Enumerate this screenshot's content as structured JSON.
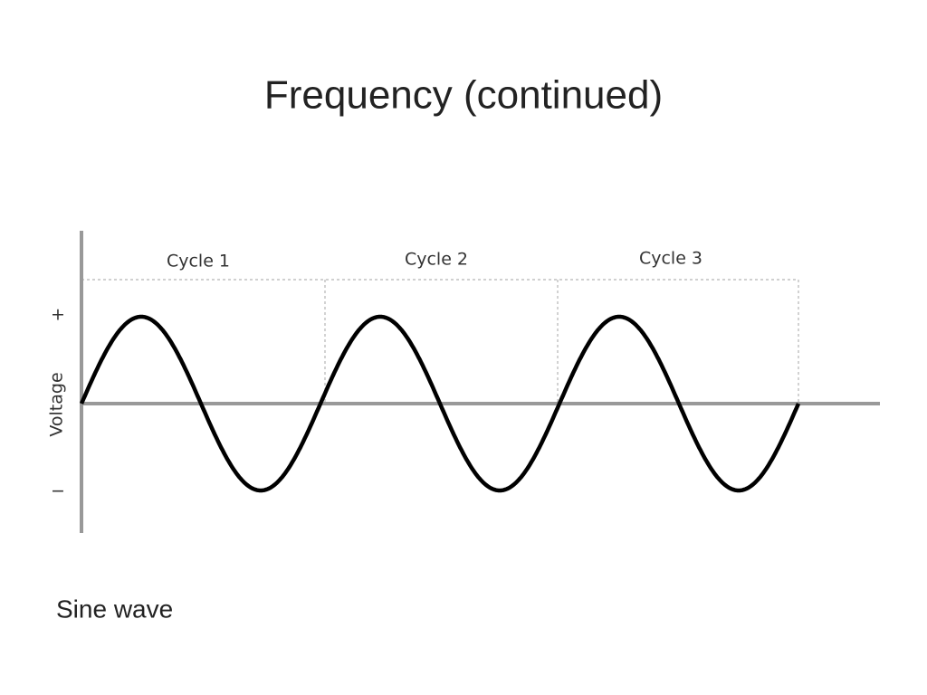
{
  "title": "Frequency (continued)",
  "diagram": {
    "cycles": [
      "Cycle 1",
      "Cycle 2",
      "Cycle 3"
    ],
    "y_axis_label": "Voltage",
    "plus": "+",
    "minus": "−"
  },
  "caption": "Sine wave"
}
